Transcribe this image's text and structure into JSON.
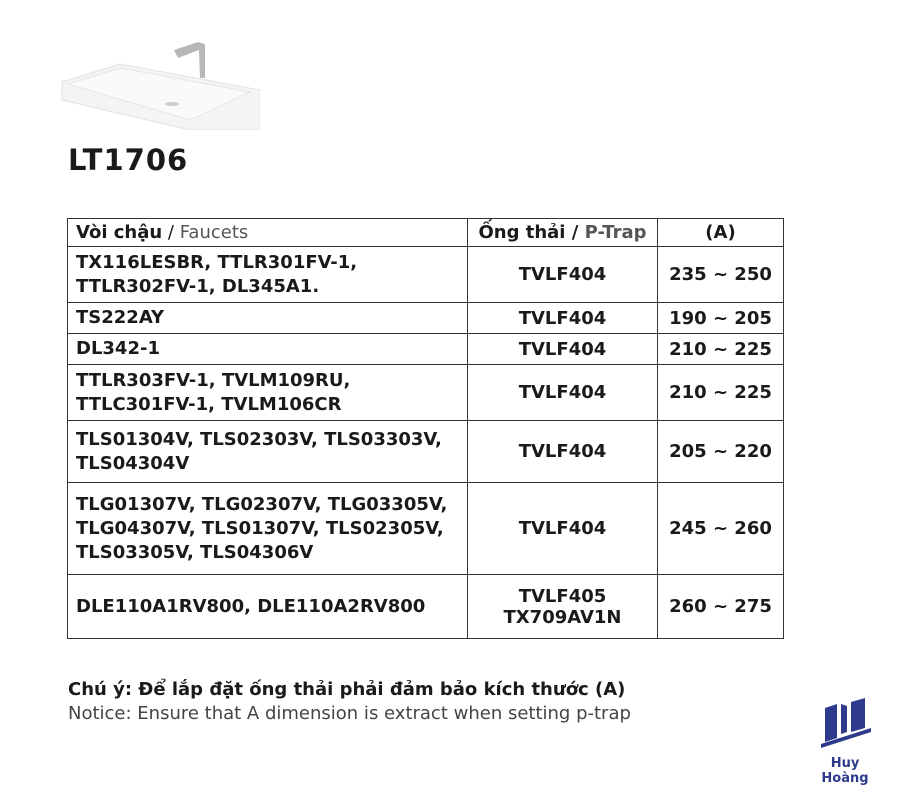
{
  "product": {
    "model": "LT1706"
  },
  "table": {
    "headers": {
      "faucets_vi": "Vòi chậu",
      "faucets_sep": " / ",
      "faucets_en": "Faucets",
      "ptrap_vi": "Ống thải",
      "ptrap_sep": " / ",
      "ptrap_en": "P-Trap",
      "dimension": "(A)"
    },
    "rows": [
      {
        "faucets": "TX116LESBR, TTLR301FV-1, TTLR302FV-1, DL345A1.",
        "ptrap": "TVLF404",
        "range": "235 ~ 250"
      },
      {
        "faucets": "TS222AY",
        "ptrap": "TVLF404",
        "range": "190 ~ 205"
      },
      {
        "faucets": "DL342-1",
        "ptrap": "TVLF404",
        "range": "210 ~ 225"
      },
      {
        "faucets": "TTLR303FV-1, TVLM109RU, TTLC301FV-1, TVLM106CR",
        "ptrap": "TVLF404",
        "range": "210 ~ 225"
      },
      {
        "faucets": "TLS01304V, TLS02303V, TLS03303V, TLS04304V",
        "ptrap": "TVLF404",
        "range": "205 ~ 220"
      },
      {
        "faucets": "TLG01307V, TLG02307V, TLG03305V, TLG04307V, TLS01307V, TLS02305V, TLS03305V, TLS04306V",
        "ptrap": "TVLF404",
        "range": "245 ~ 260"
      },
      {
        "faucets": "DLE110A1RV800, DLE110A2RV800",
        "ptrap": "TVLF405\nTX709AV1N",
        "range": "260 ~ 275"
      }
    ]
  },
  "notes": {
    "vi": "Chú ý: Để lắp đặt ống thải phải đảm bảo kích thước (A)",
    "en": "Notice: Ensure that A dimension is extract when setting p-trap"
  },
  "logo": {
    "text": "Huy Hoàng",
    "color": "#2e3a8c"
  }
}
